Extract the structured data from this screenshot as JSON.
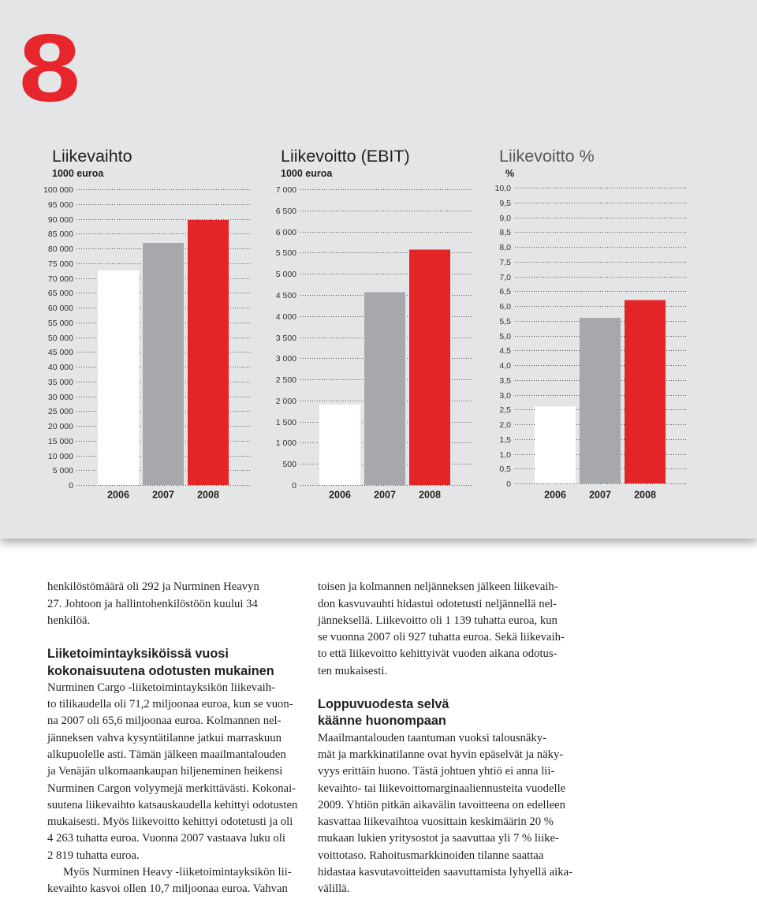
{
  "page_number": "8",
  "chart_data": [
    {
      "type": "bar",
      "title": "Liikevaihto",
      "subtitle": "1000 euroa",
      "xlabel": "",
      "ylabel": "",
      "categories": [
        "2006",
        "2007",
        "2008"
      ],
      "values": [
        72500,
        81900,
        89600
      ],
      "colors": [
        "#ffffff",
        "#a6a8ab",
        "#e42528"
      ],
      "ylim": [
        0,
        100000
      ],
      "yticks": [
        0,
        5000,
        10000,
        15000,
        20000,
        25000,
        30000,
        35000,
        40000,
        45000,
        50000,
        55000,
        60000,
        65000,
        70000,
        75000,
        80000,
        85000,
        90000,
        95000,
        100000
      ],
      "ytick_labels": [
        "0",
        "5 000",
        "10 000",
        "15 000",
        "20 000",
        "25 000",
        "30 000",
        "35 000",
        "40 000",
        "45 000",
        "50 000",
        "55 000",
        "60 000",
        "65 000",
        "70 000",
        "75 000",
        "80 000",
        "85 000",
        "90 000",
        "95 000",
        "100 000"
      ],
      "grid": true
    },
    {
      "type": "bar",
      "title": "Liikevoitto (EBIT)",
      "subtitle": "1000 euroa",
      "xlabel": "",
      "ylabel": "",
      "categories": [
        "2006",
        "2007",
        "2008"
      ],
      "values": [
        1900,
        4560,
        5570
      ],
      "colors": [
        "#ffffff",
        "#a6a8ab",
        "#e42528"
      ],
      "ylim": [
        0,
        7000
      ],
      "yticks": [
        0,
        500,
        1000,
        1500,
        2000,
        2500,
        3000,
        3500,
        4000,
        4500,
        5000,
        5500,
        6000,
        6500,
        7000
      ],
      "ytick_labels": [
        "0",
        "500",
        "1 000",
        "1 500",
        "2 000",
        "2 500",
        "3 000",
        "3 500",
        "4 000",
        "4 500",
        "5 000",
        "5 500",
        "6 000",
        "6 500",
        "7 000"
      ],
      "grid": true
    },
    {
      "type": "bar",
      "title": "Liikevoitto %",
      "subtitle": "%",
      "xlabel": "",
      "ylabel": "",
      "categories": [
        "2006",
        "2007",
        "2008"
      ],
      "values": [
        2.6,
        5.6,
        6.2
      ],
      "colors": [
        "#ffffff",
        "#a6a8ab",
        "#e42528"
      ],
      "ylim": [
        0,
        10
      ],
      "yticks": [
        0,
        0.5,
        1,
        1.5,
        2,
        2.5,
        3,
        3.5,
        4,
        4.5,
        5,
        5.5,
        6,
        6.5,
        7,
        7.5,
        8,
        8.5,
        9,
        9.5,
        10
      ],
      "ytick_labels": [
        "0",
        "0,5",
        "1,0",
        "1,5",
        "2,0",
        "2,5",
        "3,0",
        "3,5",
        "4,0",
        "4,5",
        "5,0",
        "5,5",
        "6,0",
        "6,5",
        "7,0",
        "7,5",
        "8,0",
        "8,5",
        "9,0",
        "9,5",
        "10,0"
      ],
      "grid": true
    }
  ],
  "left_column": {
    "paragraph_1": [
      "henkilöstömäärä oli 292 ja Nurminen Heavyn",
      "27. Johtoon ja hallintohenkilöstöön kuului 34",
      "henkilöä."
    ],
    "heading": [
      "Liiketoimintayksiköissä vuosi",
      "kokonaisuutena odotusten mukainen"
    ],
    "paragraph_2": [
      "Nurminen Cargo -liiketoimintayksikön liikevaih-",
      "to tilikaudella oli 71,2 miljoonaa euroa, kun se vuon-",
      "na 2007 oli 65,6 miljoonaa euroa. Kolmannen nel-",
      "jänneksen vahva kysyntätilanne jatkui marraskuun",
      "alkupuolelle asti. Tämän jälkeen maailmantalouden",
      "ja Venäjän ulkomaankaupan hiljeneminen heikensi",
      "Nurminen Cargon volyymejä merkittävästi. Kokonai-",
      "suutena liikevaihto katsauskaudella kehittyi odotusten",
      "mukaisesti. Myös liikevoitto kehittyi odotetusti ja oli",
      "4 263 tuhatta euroa. Vuonna 2007 vastaava luku oli",
      "2 819 tuhatta euroa."
    ],
    "paragraph_3": [
      "Myös Nurminen Heavy -liiketoimintayksikön lii-",
      "kevaihto kasvoi ollen 10,7 miljoonaa euroa. Vahvan"
    ]
  },
  "right_column": {
    "paragraph_1": [
      "toisen ja kolmannen neljänneksen jälkeen liikevaih-",
      "don kasvuvauhti hidastui odotetusti neljännellä nel-",
      "jänneksellä. Liikevoitto oli 1 139 tuhatta euroa, kun",
      "se vuonna 2007 oli 927 tuhatta euroa. Sekä liikevaih-",
      "to että liikevoitto kehittyivät vuoden aikana odotus-",
      "ten mukaisesti."
    ],
    "heading": [
      "Loppuvuodesta selvä",
      "käänne huonompaan"
    ],
    "paragraph_2": [
      "Maailmantalouden taantuman vuoksi talousnäky-",
      "mät ja markkinatilanne ovat hyvin epäselvät ja näky-",
      "vyys erittäin huono. Tästä johtuen yhtiö ei anna lii-",
      "kevaihto- tai liikevoittomarginaaliennusteita vuodelle",
      "2009. Yhtiön pitkän aikavälin tavoitteena on edelleen",
      "kasvattaa liikevaihtoa vuosittain keskimäärin 20 %",
      "mukaan lukien yritysostot ja saavuttaa yli 7 % liike-",
      "voittotaso. Rahoitusmarkkinoiden tilanne saattaa",
      "hidastaa kasvutavoitteiden saavuttamista lyhyellä aika-",
      "välillä."
    ]
  }
}
